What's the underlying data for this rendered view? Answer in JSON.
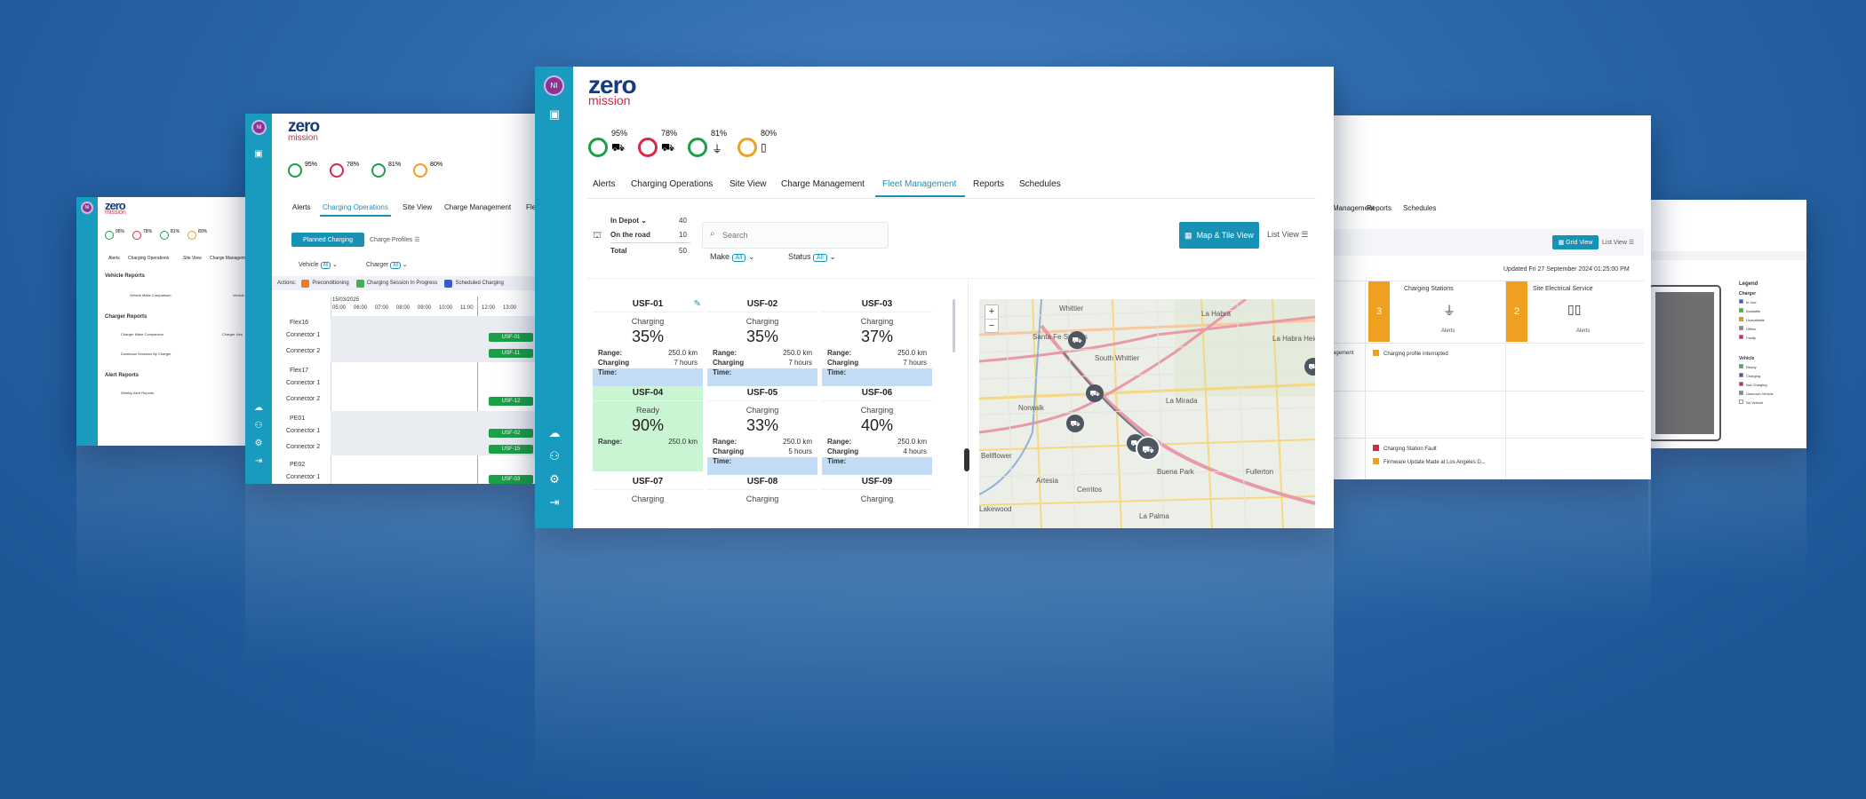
{
  "brand": {
    "logo_top": "zero",
    "logo_bottom": "mission",
    "avatar": "NI"
  },
  "kpis": [
    {
      "value": "95%",
      "color": "#1aa046"
    },
    {
      "value": "78%",
      "color": "#d9264a"
    },
    {
      "value": "81%",
      "color": "#1aa046"
    },
    {
      "value": "80%",
      "color": "#f0a020"
    }
  ],
  "nav": {
    "tabs": [
      "Alerts",
      "Charging Operations",
      "Site View",
      "Charge Management",
      "Fleet Management",
      "Reports",
      "Schedules"
    ],
    "active": "Fleet Management"
  },
  "fleet": {
    "summary": [
      {
        "label": "In Depot",
        "value": "40"
      },
      {
        "label": "On the road",
        "value": "10"
      },
      {
        "label": "Total",
        "value": "50"
      }
    ],
    "search_placeholder": "Search",
    "filters": [
      {
        "label": "Make",
        "value": "All"
      },
      {
        "label": "Status",
        "value": "All"
      }
    ],
    "view_buttons": {
      "map_tile": "Map & Tile View",
      "list": "List View"
    },
    "vehicles": [
      {
        "id": "USF-01",
        "status": "Charging",
        "soc": "35%",
        "range": "250.0 km",
        "charging_time": "7 hours",
        "state": "charging"
      },
      {
        "id": "USF-02",
        "status": "Charging",
        "soc": "35%",
        "range": "250.0 km",
        "charging_time": "7 hours",
        "state": "charging"
      },
      {
        "id": "USF-03",
        "status": "Charging",
        "soc": "37%",
        "range": "250.0 km",
        "charging_time": "7 hours",
        "state": "charging"
      },
      {
        "id": "USF-04",
        "status": "Ready",
        "soc": "90%",
        "range": "250.0 km",
        "charging_time": "",
        "state": "ready"
      },
      {
        "id": "USF-05",
        "status": "Charging",
        "soc": "33%",
        "range": "250.0 km",
        "charging_time": "5 hours",
        "state": "charging"
      },
      {
        "id": "USF-06",
        "status": "Charging",
        "soc": "40%",
        "range": "250.0 km",
        "charging_time": "4 hours",
        "state": "charging"
      },
      {
        "id": "USF-07",
        "status": "Charging",
        "soc": "",
        "range": "",
        "charging_time": "",
        "state": "charging"
      },
      {
        "id": "USF-08",
        "status": "Charging",
        "soc": "",
        "range": "",
        "charging_time": "",
        "state": "charging"
      },
      {
        "id": "USF-09",
        "status": "Charging",
        "soc": "",
        "range": "",
        "charging_time": "",
        "state": "charging"
      }
    ],
    "labels": {
      "range": "Range:",
      "charging": "Charging",
      "time": "Time:"
    },
    "map": {
      "zoom_in": "+",
      "zoom_out": "−",
      "places": [
        "Santa Fe Springs",
        "South Whittier",
        "La Habra",
        "La Mirada",
        "Norwalk",
        "Fullerton",
        "Buena Park",
        "Artesia",
        "Cerritos",
        "La Palma",
        "Bellflower",
        "Lakewood",
        "Whittier",
        "La Habra Heights"
      ]
    }
  },
  "charging_ops": {
    "planned_button": "Planned Charging",
    "profiles": "Charge Profiles",
    "filters": [
      {
        "label": "Vehicle",
        "value": "All"
      },
      {
        "label": "Charger",
        "value": "All"
      }
    ],
    "legend_title": "Actions:",
    "legend": [
      {
        "label": "Preconditioning",
        "color": "#f07a20"
      },
      {
        "label": "Charging Session In Progress",
        "color": "#3cb54a"
      },
      {
        "label": "Scheduled Charging",
        "color": "#3a5bd0"
      }
    ],
    "date": "15/03/2025",
    "hours": [
      "05:00",
      "06:00",
      "07:00",
      "08:00",
      "09:00",
      "10:00",
      "11:00",
      "12:00",
      "13:00"
    ],
    "rows": [
      {
        "charger": "Flex16",
        "connectors": [
          "Connector 1",
          "Connector 2"
        ],
        "bars": [
          "USF-01",
          "USF-11"
        ]
      },
      {
        "charger": "Flex17",
        "connectors": [
          "Connector 1",
          "Connector 2"
        ],
        "bars": [
          "",
          "USF-12"
        ]
      },
      {
        "charger": "PE01",
        "connectors": [
          "Connector 1",
          "Connector 2"
        ],
        "bars": [
          "USF-02",
          "USF-15"
        ]
      },
      {
        "charger": "PE02",
        "connectors": [
          "Connector 1"
        ],
        "bars": [
          "USF-03"
        ]
      }
    ]
  },
  "reports": {
    "vehicle_title": "Vehicle Reports",
    "charger_title": "Charger Reports",
    "alert_title": "Alert Reports",
    "vehicle_items": [
      "Vehicle Make Comparison",
      "Vehicle"
    ],
    "charger_items": [
      "Charger Make Comparison",
      "Charger Usa",
      "Download Sessions By Charger"
    ],
    "alert_items": [
      "Weekly Alert Reports"
    ]
  },
  "site": {
    "tabs": [
      "Management",
      "Reports",
      "Schedules"
    ],
    "grid_button": "Grid View",
    "list_button": "List View",
    "updated": "Updated Fri 27 September 2024 01:25:00 PM",
    "tiles": [
      {
        "count": "3",
        "title": "Charging Stations",
        "sub": "Alerts"
      },
      {
        "count": "2",
        "title": "Site Electrical Service",
        "sub": "Alerts"
      }
    ],
    "alerts": [
      {
        "text": "Charging profile interrupted",
        "color": "#f0a020"
      },
      {
        "text": "Charging Station Fault",
        "color": "#d9264a"
      },
      {
        "text": "Firmware Update Made at Los Angeles D...",
        "color": "#f0a020"
      }
    ],
    "left_label": "agement"
  },
  "legend_panel": {
    "title": "Legend",
    "charger_heading": "Charger",
    "charger_items": [
      {
        "label": "In Use",
        "color": "#3a5bd0"
      },
      {
        "label": "Available",
        "color": "#3cb54a"
      },
      {
        "label": "Unavailable",
        "color": "#f0a020"
      },
      {
        "label": "Offline",
        "color": "#8a8a8a"
      },
      {
        "label": "Faulty",
        "color": "#d9264a"
      }
    ],
    "vehicle_heading": "Vehicle",
    "vehicle_items": [
      {
        "label": "Ready",
        "color": "#3cb54a"
      },
      {
        "label": "Charging",
        "color": "#3a5bd0"
      },
      {
        "label": "Not Charging",
        "color": "#d9264a"
      },
      {
        "label": "Unknown Vehicle",
        "color": "#8a8a8a"
      },
      {
        "label": "No Vehicle",
        "color": "#ffffff"
      }
    ]
  }
}
